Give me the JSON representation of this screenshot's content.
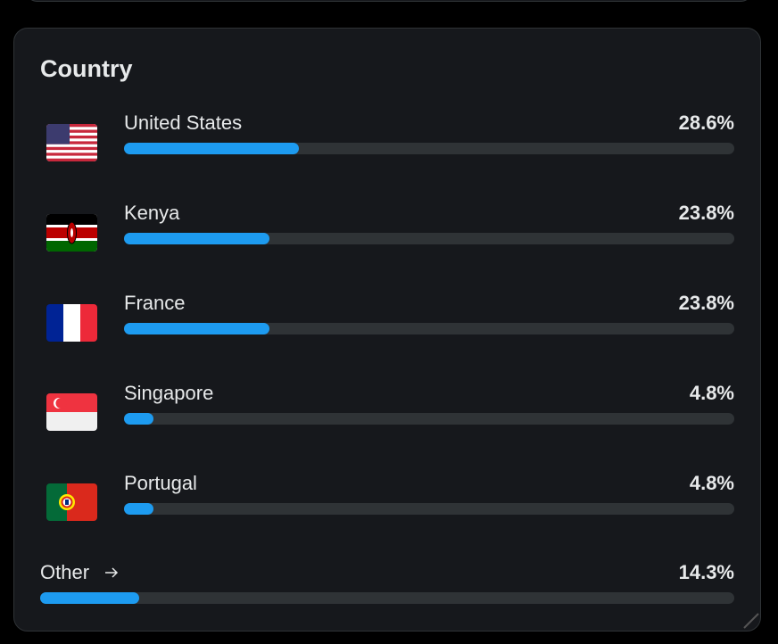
{
  "panel": {
    "title": "Country",
    "xlim": [
      0,
      100
    ],
    "bar_color": "#1d9bf0",
    "rows": [
      {
        "country": "United States",
        "value": 28.6,
        "label": "28.6%"
      },
      {
        "country": "Kenya",
        "value": 23.8,
        "label": "23.8%"
      },
      {
        "country": "France",
        "value": 23.8,
        "label": "23.8%"
      },
      {
        "country": "Singapore",
        "value": 4.8,
        "label": "4.8%"
      },
      {
        "country": "Portugal",
        "value": 4.8,
        "label": "4.8%"
      }
    ],
    "other": {
      "country": "Other",
      "value": 14.3,
      "label": "14.3%"
    }
  }
}
